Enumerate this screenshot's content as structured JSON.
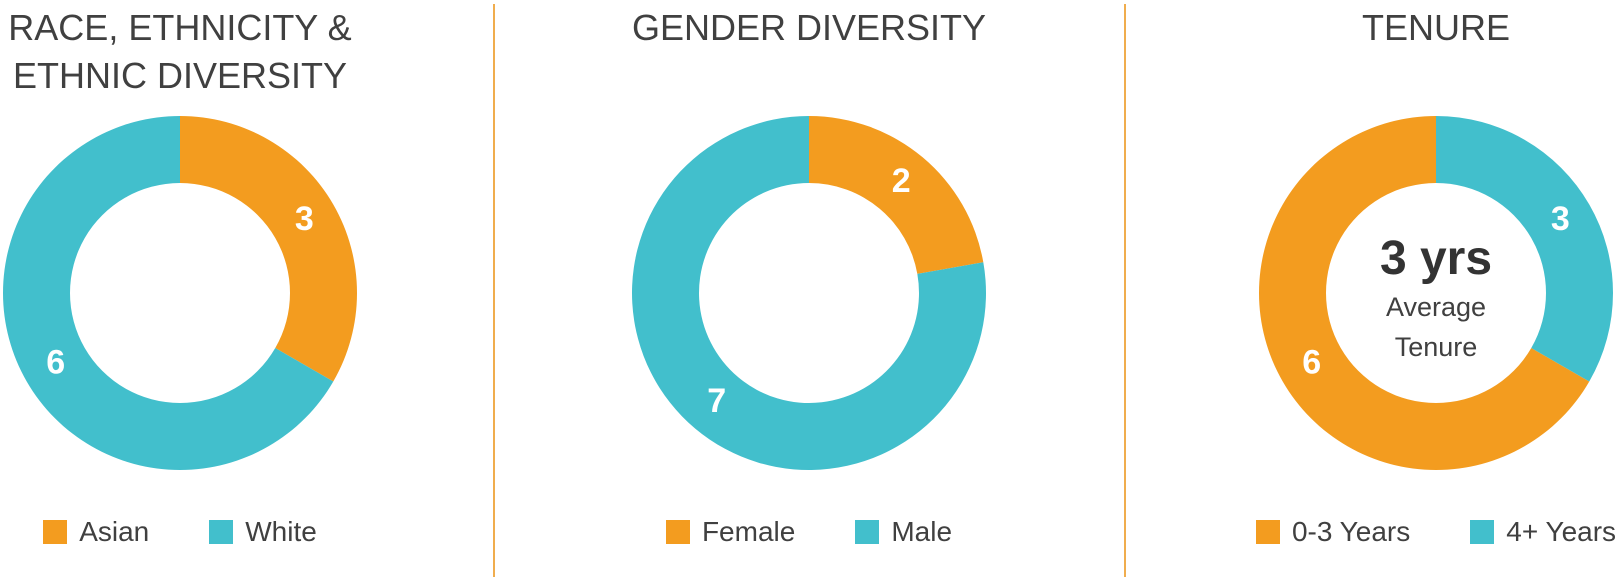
{
  "chart_data": [
    {
      "type": "pie",
      "title": "RACE, ETHNICITY & ETHNIC DIVERSITY",
      "categories": [
        "Asian",
        "White"
      ],
      "values": [
        3,
        6
      ],
      "colors": [
        "#f39c1f",
        "#42bfcc"
      ],
      "direction": "clockwise"
    },
    {
      "type": "pie",
      "title": "GENDER DIVERSITY",
      "categories": [
        "Female",
        "Male"
      ],
      "values": [
        2,
        7
      ],
      "colors": [
        "#f39c1f",
        "#42bfcc"
      ],
      "direction": "clockwise"
    },
    {
      "type": "pie",
      "title": "TENURE",
      "categories": [
        "0-3 Years",
        "4+ Years"
      ],
      "values": [
        6,
        3
      ],
      "colors": [
        "#f39c1f",
        "#42bfcc"
      ],
      "direction": "counterclockwise",
      "center_label": "3 yrs",
      "center_note": "Average Tenure"
    }
  ]
}
